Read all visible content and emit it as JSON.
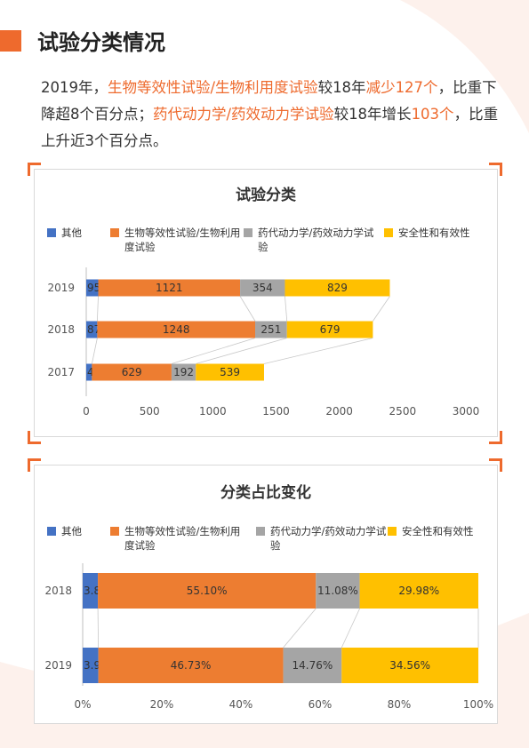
{
  "page": {
    "title": "试验分类情况",
    "intro": [
      {
        "t": "2019年，",
        "h": false
      },
      {
        "t": "生物等效性试验/生物利用度试验",
        "h": true
      },
      {
        "t": "较18年",
        "h": false
      },
      {
        "t": "减少127个",
        "h": true
      },
      {
        "t": "，比重下降超8个百分点；",
        "h": false
      },
      {
        "t": "药代动力学/药效动力学试验",
        "h": true
      },
      {
        "t": "较18年增长",
        "h": false
      },
      {
        "t": "103个",
        "h": true
      },
      {
        "t": "，比重上升近3个百分点。",
        "h": false
      }
    ]
  },
  "colors": {
    "accent": "#ee6a2d",
    "series": [
      "#4472c4",
      "#ed7d31",
      "#a5a5a5",
      "#ffc000"
    ]
  },
  "chart_data": [
    {
      "type": "bar",
      "orientation": "horizontal",
      "stacked": true,
      "title": "试验分类",
      "categories": [
        "2019",
        "2018",
        "2017"
      ],
      "series": [
        {
          "name": "其他",
          "values": [
            95,
            87,
            45
          ]
        },
        {
          "name": "生物等效性试验/生物利用度试验",
          "values": [
            1121,
            1248,
            629
          ]
        },
        {
          "name": "药代动力学/药效动力学试验",
          "values": [
            354,
            251,
            192
          ]
        },
        {
          "name": "安全性和有效性",
          "values": [
            829,
            679,
            539
          ]
        }
      ],
      "data_labels": [
        [
          "95",
          "1121",
          "354",
          "829"
        ],
        [
          "87",
          "1248",
          "251",
          "679"
        ],
        [
          "45",
          "629",
          "192",
          "539"
        ]
      ],
      "xlim": [
        0,
        3000
      ],
      "xticks": [
        "0",
        "500",
        "1000",
        "1500",
        "2000",
        "2500",
        "3000"
      ],
      "legend": "top",
      "grid": false
    },
    {
      "type": "bar",
      "orientation": "horizontal",
      "stacked": true,
      "title": "分类占比变化",
      "categories": [
        "2018",
        "2019"
      ],
      "series": [
        {
          "name": "其他",
          "values": [
            3.84,
            3.96
          ]
        },
        {
          "name": "生物等效性试验/生物利用度试验",
          "values": [
            55.1,
            46.73
          ]
        },
        {
          "name": "药代动力学/药效动力学试验",
          "values": [
            11.08,
            14.76
          ]
        },
        {
          "name": "安全性和有效性",
          "values": [
            29.98,
            34.56
          ]
        }
      ],
      "data_labels": [
        [
          "3.84%",
          "55.10%",
          "11.08%",
          "29.98%"
        ],
        [
          "3.96%",
          "46.73%",
          "14.76%",
          "34.56%"
        ]
      ],
      "xlim": [
        0,
        100
      ],
      "xticks": [
        "0%",
        "20%",
        "40%",
        "60%",
        "80%",
        "100%"
      ],
      "legend": "top",
      "grid": false
    }
  ]
}
